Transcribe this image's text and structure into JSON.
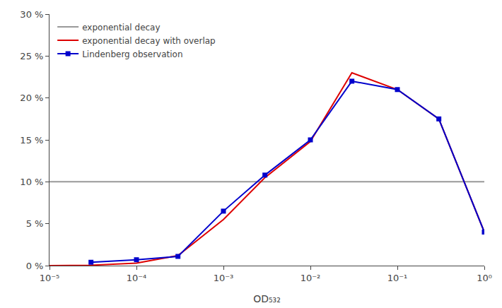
{
  "chart_data": {
    "type": "line",
    "xlabel": "OD₅₃₂",
    "series": [
      {
        "name": "exponential decay",
        "color": "#999999",
        "line_style": "solid",
        "x": [
          1e-05,
          1
        ],
        "values": [
          10.0,
          10.0
        ]
      },
      {
        "name": "exponential decay with overlap",
        "color": "#dd0000",
        "line_style": "solid",
        "x": [
          1e-05,
          3e-05,
          0.0001,
          0.0003,
          0.001,
          0.003,
          0.01,
          0.03,
          0.1,
          0.3,
          1
        ],
        "values": [
          0.0,
          0.05,
          0.3,
          1.2,
          5.5,
          10.5,
          14.8,
          23.0,
          21.0,
          17.5,
          4.0
        ]
      },
      {
        "name": "Lindenberg observation",
        "color": "#0000cc",
        "line_style": "solid",
        "marker": "square",
        "x": [
          3e-05,
          0.0001,
          0.0003,
          0.001,
          0.003,
          0.01,
          0.03,
          0.1,
          0.3,
          1
        ],
        "values": [
          0.4,
          0.7,
          1.1,
          6.5,
          10.8,
          15.0,
          22.0,
          21.0,
          17.5,
          4.0
        ]
      }
    ],
    "log": "x",
    "xlim": [
      1e-05,
      1
    ],
    "xticks": [
      {
        "value": 1e-05,
        "label": "10⁻⁵"
      },
      {
        "value": 0.0001,
        "label": "10⁻⁴"
      },
      {
        "value": 0.001,
        "label": "10⁻³"
      },
      {
        "value": 0.01,
        "label": "10⁻²"
      },
      {
        "value": 0.1,
        "label": "10⁻¹"
      },
      {
        "value": 1,
        "label": "10⁰"
      }
    ],
    "ylim": [
      0,
      30
    ],
    "yticks": [
      {
        "value": 0,
        "label": "0 %"
      },
      {
        "value": 5,
        "label": "5 %"
      },
      {
        "value": 10,
        "label": "10 %"
      },
      {
        "value": 15,
        "label": "15 %"
      },
      {
        "value": 20,
        "label": "20 %"
      },
      {
        "value": 25,
        "label": "25 %"
      },
      {
        "value": 30,
        "label": "30 %"
      }
    ],
    "grid": false,
    "legend": "upper left"
  }
}
